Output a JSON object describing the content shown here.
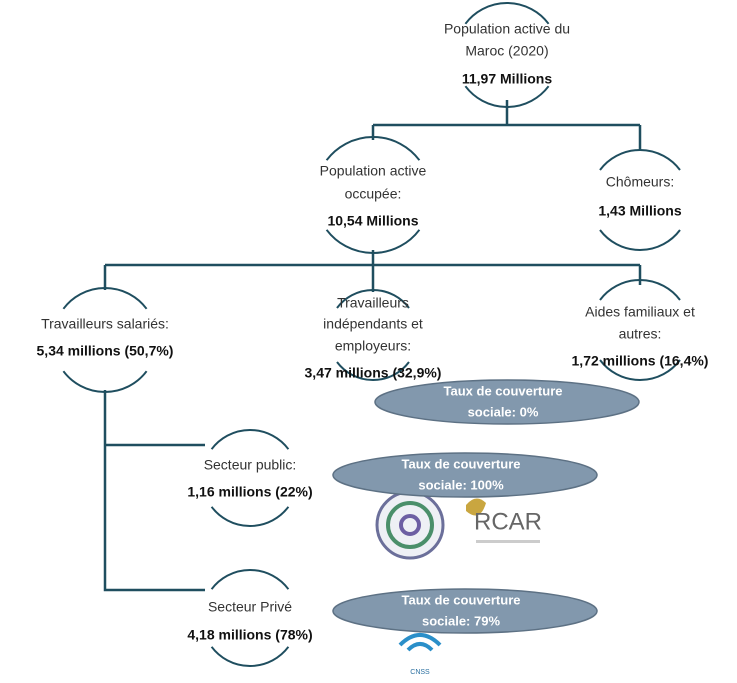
{
  "nodes": [
    {
      "lines": [
        "Population active du",
        "Maroc (2020)"
      ],
      "value": "11,97 Millions"
    },
    {
      "lines": [
        "Population active",
        "occupée:"
      ],
      "value": "10,54 Millions"
    },
    {
      "lines": [
        "Chômeurs:"
      ],
      "value": "1,43 Millions"
    },
    {
      "lines": [
        "Travailleurs salariés:"
      ],
      "value": "5,34 millions (50,7%)"
    },
    {
      "lines": [
        "Travailleurs",
        "indépendants et",
        "employeurs:"
      ],
      "value": "3,47 millions (32,9%)"
    },
    {
      "lines": [
        "Aides familiaux et",
        "autres:"
      ],
      "value": "1,72 millions (16,4%)"
    },
    {
      "lines": [
        "Secteur public:"
      ],
      "value": "1,16 millions (22%)"
    },
    {
      "lines": [
        "Secteur Privé"
      ],
      "value": "4,18 millions (78%)"
    }
  ],
  "coverage": [
    {
      "lines": [
        "Taux de couverture",
        "sociale: 0%"
      ]
    },
    {
      "lines": [
        "Taux de couverture",
        "sociale: 100%"
      ]
    },
    {
      "lines": [
        "Taux de couverture",
        "sociale: 79%"
      ]
    }
  ],
  "logos": [
    "RCAR",
    "CNSS"
  ]
}
